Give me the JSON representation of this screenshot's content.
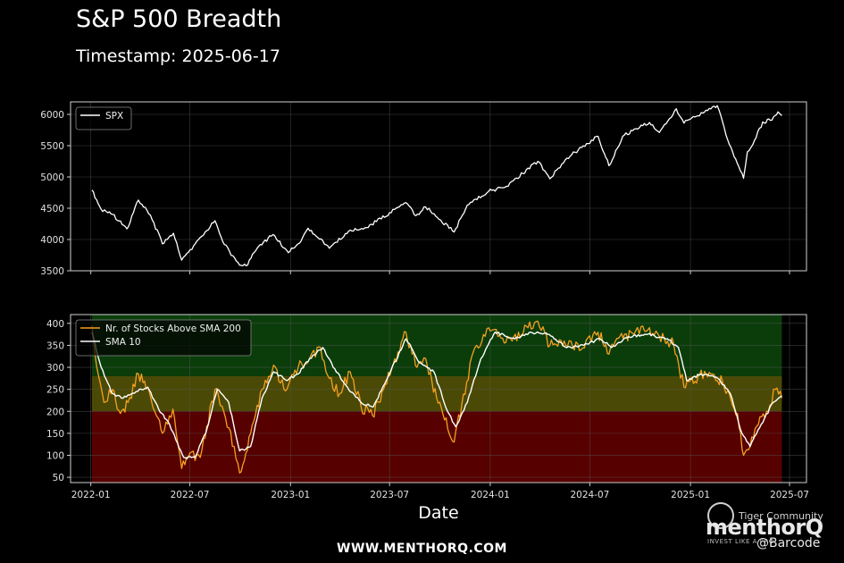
{
  "header": {
    "title": "S&P 500 Breadth",
    "subtitle": "Timestamp: 2025-06-17"
  },
  "footer": {
    "url": "WWW.MENTHORQ.COM"
  },
  "watermark": {
    "logo": "menthorQ",
    "tagline": "INVEST LIKE A PRO",
    "community": "Tiger Community",
    "handle": "@Barcode"
  },
  "colors": {
    "background": "#000000",
    "spx_line": "#ffffff",
    "breadth_line": "#f5a020",
    "sma_line": "#ffffff",
    "zone_green": "#0b3d0b",
    "zone_yellow": "#4a4a06",
    "zone_red": "#560000"
  },
  "chart_data": [
    {
      "type": "line",
      "title": "",
      "xlabel": "",
      "ylabel": "",
      "ylim": [
        3500,
        6200
      ],
      "yticks": [
        3500,
        4000,
        4500,
        5000,
        5500,
        6000
      ],
      "xlim": [
        "2021-11-25",
        "2025-08-01"
      ],
      "legend": "top-left",
      "grid": true,
      "series": [
        {
          "name": "SPX",
          "x": [
            "2022-01-03",
            "2022-01-20",
            "2022-02-10",
            "2022-03-08",
            "2022-03-29",
            "2022-04-20",
            "2022-05-12",
            "2022-06-01",
            "2022-06-16",
            "2022-07-08",
            "2022-08-16",
            "2022-09-02",
            "2022-09-30",
            "2022-10-12",
            "2022-11-01",
            "2022-11-30",
            "2022-12-28",
            "2023-01-20",
            "2023-02-02",
            "2023-03-13",
            "2023-04-20",
            "2023-05-20",
            "2023-07-31",
            "2023-08-18",
            "2023-09-05",
            "2023-10-27",
            "2023-11-20",
            "2023-12-29",
            "2024-01-31",
            "2024-03-28",
            "2024-04-19",
            "2024-05-20",
            "2024-07-16",
            "2024-08-05",
            "2024-08-30",
            "2024-10-18",
            "2024-11-05",
            "2024-12-06",
            "2024-12-20",
            "2025-01-03",
            "2025-02-19",
            "2025-03-13",
            "2025-04-08",
            "2025-04-15",
            "2025-04-25",
            "2025-05-13",
            "2025-05-30",
            "2025-06-10",
            "2025-06-17"
          ],
          "y": [
            4790,
            4480,
            4400,
            4170,
            4630,
            4390,
            3930,
            4100,
            3670,
            3900,
            4300,
            3920,
            3590,
            3580,
            3860,
            4080,
            3790,
            3970,
            4180,
            3860,
            4150,
            4190,
            4590,
            4380,
            4520,
            4120,
            4550,
            4770,
            4850,
            5250,
            4970,
            5300,
            5650,
            5180,
            5650,
            5870,
            5710,
            6090,
            5860,
            5940,
            6140,
            5520,
            4980,
            5400,
            5520,
            5880,
            5910,
            6040,
            5980
          ]
        }
      ]
    },
    {
      "type": "line",
      "title": "",
      "xlabel": "Date",
      "ylabel": "",
      "ylim": [
        38,
        420
      ],
      "yticks": [
        50,
        100,
        150,
        200,
        250,
        300,
        350,
        400
      ],
      "xlim": [
        "2021-11-25",
        "2025-08-01"
      ],
      "xticks": [
        "2022-01",
        "2022-07",
        "2023-01",
        "2023-07",
        "2024-01",
        "2024-07",
        "2025-01",
        "2025-07"
      ],
      "legend": "top-left",
      "grid": true,
      "zones": [
        {
          "from": 280,
          "to": 420,
          "color": "green"
        },
        {
          "from": 200,
          "to": 280,
          "color": "yellow"
        },
        {
          "from": 38,
          "to": 200,
          "color": "red"
        }
      ],
      "series": [
        {
          "name": "Nr. of Stocks Above SMA 200",
          "x": [
            "2022-01-03",
            "2022-01-12",
            "2022-01-25",
            "2022-02-10",
            "2022-02-24",
            "2022-03-10",
            "2022-03-29",
            "2022-04-15",
            "2022-05-01",
            "2022-05-12",
            "2022-05-31",
            "2022-06-16",
            "2022-07-01",
            "2022-07-20",
            "2022-08-16",
            "2022-09-01",
            "2022-09-20",
            "2022-09-30",
            "2022-10-20",
            "2022-11-10",
            "2022-12-01",
            "2022-12-20",
            "2023-01-15",
            "2023-02-03",
            "2023-02-25",
            "2023-03-13",
            "2023-04-01",
            "2023-04-20",
            "2023-05-10",
            "2023-05-31",
            "2023-06-20",
            "2023-07-31",
            "2023-08-20",
            "2023-09-05",
            "2023-09-25",
            "2023-10-27",
            "2023-11-10",
            "2023-12-01",
            "2023-12-29",
            "2024-01-15",
            "2024-02-10",
            "2024-03-10",
            "2024-03-28",
            "2024-04-19",
            "2024-05-15",
            "2024-06-15",
            "2024-07-16",
            "2024-08-05",
            "2024-08-25",
            "2024-09-20",
            "2024-10-15",
            "2024-11-20",
            "2024-12-01",
            "2024-12-20",
            "2025-01-15",
            "2025-02-10",
            "2025-03-01",
            "2025-03-13",
            "2025-03-28",
            "2025-04-08",
            "2025-04-20",
            "2025-05-05",
            "2025-05-20",
            "2025-06-05",
            "2025-06-17"
          ],
          "y": [
            395,
            300,
            220,
            250,
            195,
            220,
            285,
            255,
            190,
            150,
            205,
            70,
            105,
            95,
            250,
            200,
            120,
            60,
            150,
            250,
            305,
            250,
            300,
            315,
            345,
            275,
            240,
            290,
            210,
            190,
            250,
            380,
            300,
            320,
            230,
            130,
            215,
            335,
            390,
            370,
            360,
            390,
            405,
            350,
            360,
            340,
            380,
            330,
            370,
            375,
            385,
            360,
            355,
            255,
            280,
            285,
            265,
            240,
            195,
            100,
            120,
            170,
            200,
            250,
            230
          ]
        },
        {
          "name": "SMA 10",
          "x": [
            "2022-01-03",
            "2022-01-20",
            "2022-02-10",
            "2022-03-01",
            "2022-03-25",
            "2022-04-15",
            "2022-05-05",
            "2022-05-25",
            "2022-06-20",
            "2022-07-10",
            "2022-07-30",
            "2022-08-20",
            "2022-09-10",
            "2022-09-30",
            "2022-10-20",
            "2022-11-10",
            "2022-12-01",
            "2022-12-25",
            "2023-01-15",
            "2023-02-05",
            "2023-03-01",
            "2023-03-20",
            "2023-04-15",
            "2023-05-10",
            "2023-06-01",
            "2023-06-25",
            "2023-07-31",
            "2023-08-25",
            "2023-09-20",
            "2023-10-15",
            "2023-10-30",
            "2023-11-20",
            "2023-12-15",
            "2024-01-10",
            "2024-02-15",
            "2024-03-15",
            "2024-04-15",
            "2024-05-20",
            "2024-06-20",
            "2024-07-20",
            "2024-08-10",
            "2024-09-10",
            "2024-10-15",
            "2024-11-20",
            "2024-12-10",
            "2024-12-25",
            "2025-01-20",
            "2025-02-20",
            "2025-03-15",
            "2025-04-05",
            "2025-04-20",
            "2025-05-10",
            "2025-06-01",
            "2025-06-17"
          ],
          "y": [
            380,
            300,
            240,
            230,
            245,
            255,
            205,
            170,
            95,
            95,
            150,
            250,
            220,
            110,
            120,
            230,
            290,
            270,
            285,
            320,
            345,
            300,
            255,
            220,
            210,
            270,
            365,
            310,
            290,
            200,
            165,
            220,
            320,
            380,
            365,
            380,
            375,
            345,
            350,
            365,
            345,
            370,
            375,
            365,
            345,
            270,
            285,
            275,
            240,
            150,
            120,
            170,
            220,
            235
          ]
        }
      ]
    }
  ]
}
